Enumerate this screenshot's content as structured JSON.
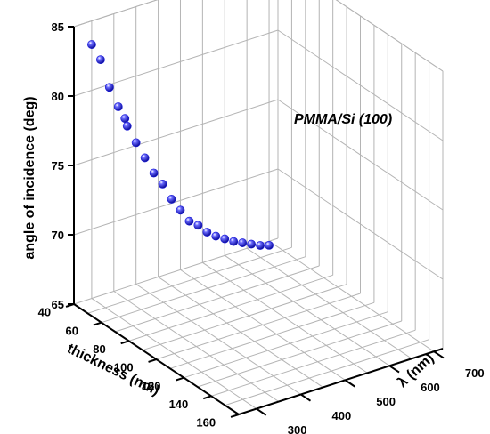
{
  "chart_data": {
    "type": "scatter",
    "projection": "3d",
    "annotation": "PMMA/Si (100)",
    "zlabel": "angle of incidence (deg)",
    "xlabel": "thickness (nm)",
    "ylabel": "λ (nm)",
    "zlim": [
      65,
      85
    ],
    "xlim": [
      40,
      160
    ],
    "ylim": [
      260,
      720
    ],
    "z_ticks": [
      "65",
      "70",
      "75",
      "80",
      "85"
    ],
    "x_ticks": [
      "40",
      "60",
      "80",
      "100",
      "120",
      "140",
      "160"
    ],
    "y_ticks": [
      "300",
      "400",
      "500",
      "600",
      "700"
    ],
    "grid": true,
    "marker_color": "#1a1ad8",
    "series": [
      {
        "points": [
          {
            "thickness": 40,
            "wavelength": 300,
            "angle": 83.3
          },
          {
            "thickness": 40,
            "wavelength": 320,
            "angle": 82.0
          },
          {
            "thickness": 40,
            "wavelength": 340,
            "angle": 79.8
          },
          {
            "thickness": 40,
            "wavelength": 360,
            "angle": 78.2
          },
          {
            "thickness": 40,
            "wavelength": 375,
            "angle": 77.2
          },
          {
            "thickness": 40,
            "wavelength": 380,
            "angle": 76.6
          },
          {
            "thickness": 40,
            "wavelength": 400,
            "angle": 75.2
          },
          {
            "thickness": 40,
            "wavelength": 420,
            "angle": 73.9
          },
          {
            "thickness": 40,
            "wavelength": 440,
            "angle": 72.6
          },
          {
            "thickness": 40,
            "wavelength": 460,
            "angle": 71.6
          },
          {
            "thickness": 40,
            "wavelength": 480,
            "angle": 70.3
          },
          {
            "thickness": 40,
            "wavelength": 500,
            "angle": 69.3
          },
          {
            "thickness": 40,
            "wavelength": 520,
            "angle": 68.3
          },
          {
            "thickness": 40,
            "wavelength": 540,
            "angle": 67.8
          },
          {
            "thickness": 40,
            "wavelength": 560,
            "angle": 67.1
          },
          {
            "thickness": 40,
            "wavelength": 580,
            "angle": 66.6
          },
          {
            "thickness": 40,
            "wavelength": 600,
            "angle": 66.2
          },
          {
            "thickness": 40,
            "wavelength": 620,
            "angle": 65.8
          },
          {
            "thickness": 40,
            "wavelength": 640,
            "angle": 65.5
          },
          {
            "thickness": 40,
            "wavelength": 660,
            "angle": 65.2
          },
          {
            "thickness": 40,
            "wavelength": 680,
            "angle": 64.9
          },
          {
            "thickness": 40,
            "wavelength": 700,
            "angle": 64.7
          }
        ]
      }
    ]
  }
}
